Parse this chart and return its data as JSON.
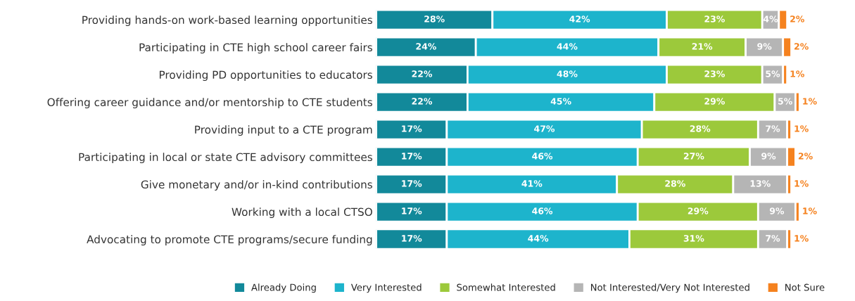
{
  "chart_data": {
    "type": "bar",
    "orientation": "horizontal",
    "stacked": true,
    "tick_labels": "y",
    "grid": false,
    "legend": "bottom",
    "categories": [
      "Providing hands-on work-based learning opportunities",
      "Participating in CTE high school career fairs",
      "Providing PD opportunities to educators",
      "Offering career guidance and/or mentorship to CTE students",
      "Providing input to a CTE program",
      "Participating in local or state CTE advisory committees",
      "Give monetary and/or in-kind contributions",
      "Working with a local CTSO",
      "Advocating to promote CTE programs/secure funding"
    ],
    "series": [
      {
        "name": "Already Doing",
        "color": "#12899a",
        "values": [
          28,
          24,
          22,
          22,
          17,
          17,
          17,
          17,
          17
        ],
        "value_labels": [
          "28%",
          "24%",
          "22%",
          "22%",
          "17%",
          "17%",
          "17%",
          "17%",
          "17%"
        ]
      },
      {
        "name": "Very Interested",
        "color": "#1db4cc",
        "values": [
          42,
          44,
          48,
          45,
          47,
          46,
          41,
          46,
          44
        ],
        "value_labels": [
          "42%",
          "44%",
          "48%",
          "45%",
          "47%",
          "46%",
          "41%",
          "46%",
          "44%"
        ]
      },
      {
        "name": "Somewhat Interested",
        "color": "#9cc93b",
        "values": [
          23,
          21,
          23,
          29,
          28,
          27,
          28,
          29,
          31
        ],
        "value_labels": [
          "23%",
          "21%",
          "23%",
          "29%",
          "28%",
          "27%",
          "28%",
          "29%",
          "31%"
        ]
      },
      {
        "name": "Not Interested/Very Not Interested",
        "color": "#b5b5b5",
        "values": [
          4,
          9,
          5,
          5,
          7,
          9,
          13,
          9,
          7
        ],
        "value_labels": [
          "4%",
          "9%",
          "5%",
          "5%",
          "7%",
          "9%",
          "13%",
          "9%",
          "7%"
        ]
      },
      {
        "name": "Not Sure",
        "color": "#f5821f",
        "values": [
          2,
          2,
          1,
          1,
          1,
          2,
          1,
          1,
          1
        ],
        "value_labels": [
          "2%",
          "2%",
          "1%",
          "1%",
          "1%",
          "2%",
          "1%",
          "1%",
          "1%"
        ]
      }
    ]
  }
}
